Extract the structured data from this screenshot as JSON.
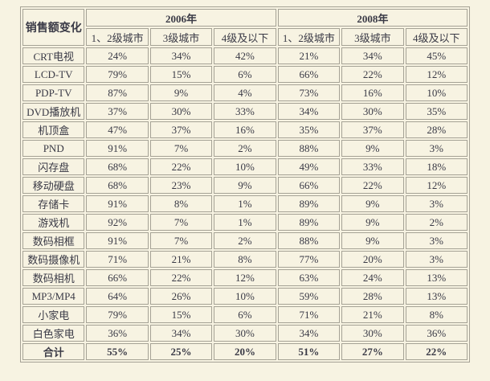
{
  "colors": {
    "page_background": "#f7f3e2",
    "cell_border": "#a5a295",
    "text": "#3a3a46"
  },
  "chart_data": {
    "type": "table",
    "title": "销售额变化",
    "corner_header": "销售额变化",
    "year_groups": [
      "2006年",
      "2008年"
    ],
    "tier_headers": [
      "1、2级城市",
      "3级城市",
      "4级及以下",
      "1、2级城市",
      "3级城市",
      "4级及以下"
    ],
    "rows": [
      {
        "label": "CRT电视",
        "values": [
          "24%",
          "34%",
          "42%",
          "21%",
          "34%",
          "45%"
        ]
      },
      {
        "label": "LCD-TV",
        "values": [
          "79%",
          "15%",
          "6%",
          "66%",
          "22%",
          "12%"
        ]
      },
      {
        "label": "PDP-TV",
        "values": [
          "87%",
          "9%",
          "4%",
          "73%",
          "16%",
          "10%"
        ]
      },
      {
        "label": "DVD播放机",
        "values": [
          "37%",
          "30%",
          "33%",
          "34%",
          "30%",
          "35%"
        ]
      },
      {
        "label": "机顶盒",
        "values": [
          "47%",
          "37%",
          "16%",
          "35%",
          "37%",
          "28%"
        ]
      },
      {
        "label": "PND",
        "values": [
          "91%",
          "7%",
          "2%",
          "88%",
          "9%",
          "3%"
        ]
      },
      {
        "label": "闪存盘",
        "values": [
          "68%",
          "22%",
          "10%",
          "49%",
          "33%",
          "18%"
        ]
      },
      {
        "label": "移动硬盘",
        "values": [
          "68%",
          "23%",
          "9%",
          "66%",
          "22%",
          "12%"
        ]
      },
      {
        "label": "存储卡",
        "values": [
          "91%",
          "8%",
          "1%",
          "89%",
          "9%",
          "3%"
        ]
      },
      {
        "label": "游戏机",
        "values": [
          "92%",
          "7%",
          "1%",
          "89%",
          "9%",
          "2%"
        ]
      },
      {
        "label": "数码相框",
        "values": [
          "91%",
          "7%",
          "2%",
          "88%",
          "9%",
          "3%"
        ]
      },
      {
        "label": "数码摄像机",
        "values": [
          "71%",
          "21%",
          "8%",
          "77%",
          "20%",
          "3%"
        ]
      },
      {
        "label": "数码相机",
        "values": [
          "66%",
          "22%",
          "12%",
          "63%",
          "24%",
          "13%"
        ]
      },
      {
        "label": "MP3/MP4",
        "values": [
          "64%",
          "26%",
          "10%",
          "59%",
          "28%",
          "13%"
        ]
      },
      {
        "label": "小家电",
        "values": [
          "79%",
          "15%",
          "6%",
          "71%",
          "21%",
          "8%"
        ]
      },
      {
        "label": "白色家电",
        "values": [
          "36%",
          "34%",
          "30%",
          "34%",
          "30%",
          "36%"
        ]
      }
    ],
    "total_row": {
      "label": "合计",
      "values": [
        "55%",
        "25%",
        "20%",
        "51%",
        "27%",
        "22%"
      ]
    }
  }
}
